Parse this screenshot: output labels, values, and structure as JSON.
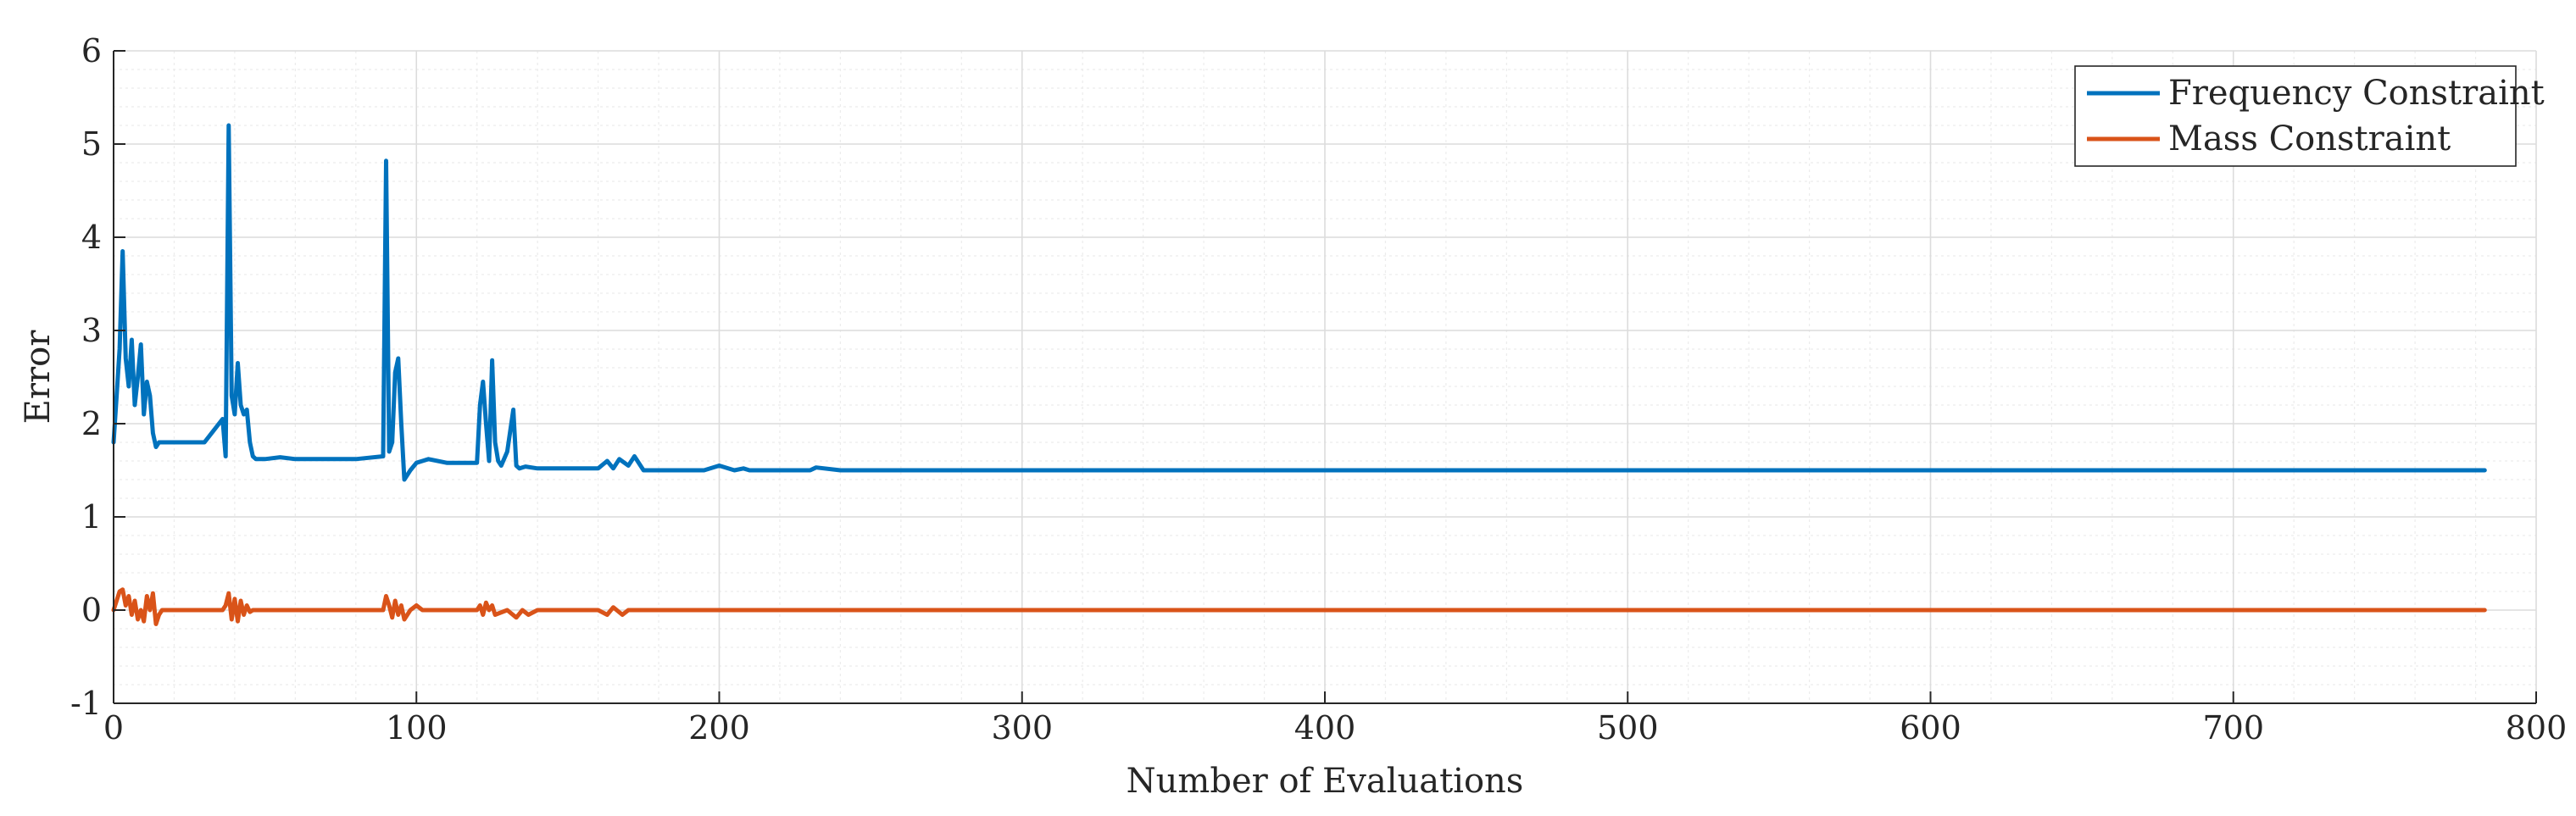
{
  "chart_data": {
    "type": "line",
    "title": "",
    "xlabel": "Number of Evaluations",
    "ylabel": "Error",
    "xlim": [
      0,
      800
    ],
    "ylim": [
      -1,
      6
    ],
    "xticks": [
      0,
      100,
      200,
      300,
      400,
      500,
      600,
      700,
      800
    ],
    "yticks": [
      -1,
      0,
      1,
      2,
      3,
      4,
      5,
      6
    ],
    "grid": true,
    "minor_grid": true,
    "legend_position": "top-right",
    "series": [
      {
        "name": "Frequency Constraint",
        "color": "#0072BD",
        "x": [
          0,
          1,
          2,
          3,
          4,
          5,
          6,
          7,
          8,
          9,
          10,
          11,
          12,
          13,
          14,
          15,
          20,
          30,
          36,
          37,
          38,
          39,
          40,
          41,
          42,
          43,
          44,
          45,
          46,
          47,
          50,
          55,
          60,
          70,
          80,
          89,
          90,
          91,
          92,
          93,
          94,
          95,
          96,
          98,
          100,
          102,
          104,
          110,
          120,
          121,
          122,
          123,
          124,
          125,
          126,
          127,
          128,
          130,
          132,
          133,
          134,
          136,
          140,
          150,
          160,
          163,
          165,
          167,
          170,
          172,
          175,
          180,
          195,
          200,
          205,
          208,
          210,
          230,
          232,
          240,
          270,
          300,
          340,
          400,
          500,
          600,
          700,
          783
        ],
        "y": [
          1.8,
          2.3,
          2.8,
          3.85,
          2.7,
          2.4,
          2.9,
          2.2,
          2.5,
          2.85,
          2.1,
          2.45,
          2.3,
          1.9,
          1.75,
          1.8,
          1.8,
          1.8,
          2.05,
          1.65,
          5.2,
          2.3,
          2.1,
          2.65,
          2.2,
          2.1,
          2.15,
          1.8,
          1.65,
          1.62,
          1.62,
          1.64,
          1.62,
          1.62,
          1.62,
          1.65,
          4.82,
          1.7,
          1.8,
          2.55,
          2.7,
          2.0,
          1.4,
          1.5,
          1.58,
          1.6,
          1.62,
          1.58,
          1.58,
          2.2,
          2.45,
          2.0,
          1.6,
          2.68,
          1.8,
          1.6,
          1.55,
          1.7,
          2.15,
          1.55,
          1.52,
          1.54,
          1.52,
          1.52,
          1.52,
          1.6,
          1.52,
          1.62,
          1.55,
          1.65,
          1.5,
          1.5,
          1.5,
          1.55,
          1.5,
          1.52,
          1.5,
          1.5,
          1.53,
          1.5,
          1.5,
          1.5,
          1.5,
          1.5,
          1.5,
          1.5,
          1.5,
          1.5
        ]
      },
      {
        "name": "Mass Constraint",
        "color": "#D95319",
        "x": [
          0,
          2,
          3,
          4,
          5,
          6,
          7,
          8,
          9,
          10,
          11,
          12,
          13,
          14,
          15,
          16,
          20,
          30,
          36,
          37,
          38,
          39,
          40,
          41,
          42,
          43,
          44,
          45,
          46,
          50,
          60,
          70,
          80,
          89,
          90,
          91,
          92,
          93,
          94,
          95,
          96,
          98,
          100,
          102,
          110,
          120,
          121,
          122,
          123,
          124,
          125,
          126,
          130,
          133,
          135,
          137,
          140,
          150,
          160,
          163,
          165,
          168,
          170,
          200,
          210,
          300,
          400,
          500,
          600,
          700,
          783
        ],
        "y": [
          0.0,
          0.2,
          0.22,
          0.05,
          0.15,
          -0.05,
          0.1,
          -0.1,
          0.0,
          -0.12,
          0.15,
          0.0,
          0.18,
          -0.15,
          -0.05,
          0.0,
          0.0,
          0.0,
          0.0,
          0.05,
          0.18,
          -0.1,
          0.12,
          -0.12,
          0.1,
          -0.05,
          0.05,
          -0.02,
          0.0,
          0.0,
          0.0,
          0.0,
          0.0,
          0.0,
          0.15,
          0.05,
          -0.08,
          0.1,
          -0.05,
          0.05,
          -0.1,
          0.0,
          0.05,
          0.0,
          0.0,
          0.0,
          0.05,
          -0.05,
          0.08,
          0.0,
          0.05,
          -0.05,
          0.0,
          -0.08,
          0.0,
          -0.05,
          0.0,
          0.0,
          0.0,
          -0.05,
          0.03,
          -0.05,
          0.0,
          0.0,
          0.0,
          0.0,
          0.0,
          0.0,
          0.0,
          0.0,
          0.0
        ]
      }
    ]
  }
}
